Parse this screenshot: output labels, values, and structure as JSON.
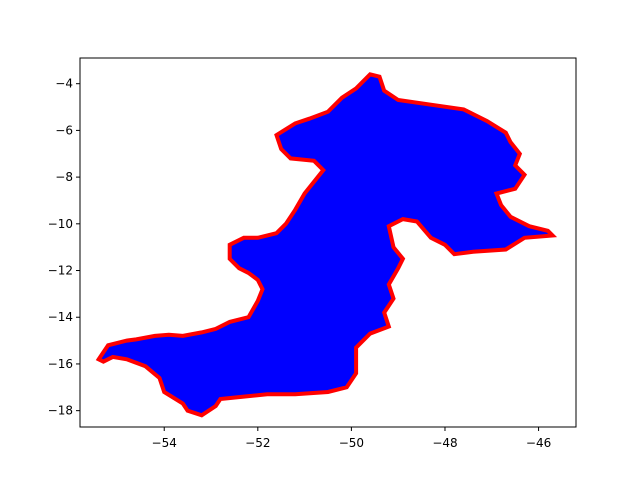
{
  "chart_data": {
    "type": "area",
    "title": "",
    "xlabel": "",
    "ylabel": "",
    "xlim": [
      -55.8,
      -45.2
    ],
    "ylim": [
      -18.7,
      -2.9
    ],
    "grid": false,
    "legend": "none",
    "x_ticks": [
      -54,
      -52,
      -50,
      -48,
      -46
    ],
    "y_ticks": [
      -4,
      -6,
      -8,
      -10,
      -12,
      -14,
      -16,
      -18
    ],
    "x_tick_labels": [
      "−54",
      "−52",
      "−50",
      "−48",
      "−46"
    ],
    "y_tick_labels": [
      "−4",
      "−6",
      "−8",
      "−10",
      "−12",
      "−14",
      "−16",
      "−18"
    ],
    "fill_color": "#0000ff",
    "edge_color": "#ff0000",
    "series": [
      {
        "boundary": [
          [
            -55.4,
            -15.8
          ],
          [
            -55.2,
            -15.2
          ],
          [
            -54.8,
            -15.0
          ],
          [
            -54.6,
            -14.95
          ],
          [
            -54.2,
            -14.8
          ],
          [
            -53.9,
            -14.75
          ],
          [
            -53.6,
            -14.8
          ],
          [
            -53.2,
            -14.65
          ],
          [
            -52.9,
            -14.5
          ],
          [
            -52.6,
            -14.2
          ],
          [
            -52.2,
            -14.0
          ],
          [
            -52.0,
            -13.3
          ],
          [
            -51.9,
            -12.8
          ],
          [
            -52.0,
            -12.4
          ],
          [
            -52.2,
            -12.1
          ],
          [
            -52.4,
            -11.9
          ],
          [
            -52.6,
            -11.5
          ],
          [
            -52.6,
            -10.9
          ],
          [
            -52.3,
            -10.6
          ],
          [
            -52.0,
            -10.6
          ],
          [
            -51.6,
            -10.4
          ],
          [
            -51.4,
            -10.0
          ],
          [
            -51.2,
            -9.4
          ],
          [
            -51.0,
            -8.7
          ],
          [
            -50.8,
            -8.2
          ],
          [
            -50.6,
            -7.7
          ],
          [
            -50.8,
            -7.3
          ],
          [
            -51.3,
            -7.2
          ],
          [
            -51.5,
            -6.8
          ],
          [
            -51.6,
            -6.2
          ],
          [
            -51.2,
            -5.7
          ],
          [
            -50.9,
            -5.5
          ],
          [
            -50.5,
            -5.2
          ],
          [
            -50.2,
            -4.6
          ],
          [
            -49.9,
            -4.2
          ],
          [
            -49.6,
            -3.6
          ],
          [
            -49.4,
            -3.7
          ],
          [
            -49.3,
            -4.3
          ],
          [
            -49.0,
            -4.7
          ],
          [
            -48.3,
            -4.9
          ],
          [
            -47.6,
            -5.1
          ],
          [
            -47.1,
            -5.6
          ],
          [
            -46.7,
            -6.1
          ],
          [
            -46.6,
            -6.5
          ],
          [
            -46.4,
            -7.0
          ],
          [
            -46.5,
            -7.5
          ],
          [
            -46.3,
            -7.9
          ],
          [
            -46.5,
            -8.5
          ],
          [
            -46.9,
            -8.7
          ],
          [
            -46.8,
            -9.2
          ],
          [
            -46.6,
            -9.7
          ],
          [
            -46.2,
            -10.1
          ],
          [
            -45.8,
            -10.3
          ],
          [
            -45.7,
            -10.5
          ],
          [
            -46.3,
            -10.6
          ],
          [
            -46.7,
            -11.1
          ],
          [
            -47.4,
            -11.2
          ],
          [
            -47.8,
            -11.3
          ],
          [
            -48.0,
            -10.9
          ],
          [
            -48.3,
            -10.6
          ],
          [
            -48.6,
            -9.9
          ],
          [
            -48.9,
            -9.8
          ],
          [
            -49.2,
            -10.1
          ],
          [
            -49.1,
            -11.0
          ],
          [
            -48.9,
            -11.5
          ],
          [
            -49.0,
            -11.9
          ],
          [
            -49.2,
            -12.6
          ],
          [
            -49.1,
            -13.2
          ],
          [
            -49.3,
            -13.8
          ],
          [
            -49.2,
            -14.4
          ],
          [
            -49.6,
            -14.7
          ],
          [
            -49.9,
            -15.3
          ],
          [
            -49.9,
            -16.4
          ],
          [
            -50.1,
            -17.0
          ],
          [
            -50.5,
            -17.2
          ],
          [
            -51.2,
            -17.3
          ],
          [
            -51.8,
            -17.3
          ],
          [
            -52.3,
            -17.4
          ],
          [
            -52.8,
            -17.5
          ],
          [
            -52.9,
            -17.8
          ],
          [
            -53.2,
            -18.2
          ],
          [
            -53.5,
            -18.0
          ],
          [
            -53.6,
            -17.7
          ],
          [
            -54.0,
            -17.2
          ],
          [
            -54.1,
            -16.6
          ],
          [
            -54.4,
            -16.1
          ],
          [
            -54.8,
            -15.8
          ],
          [
            -55.1,
            -15.7
          ],
          [
            -55.3,
            -15.9
          ]
        ]
      }
    ]
  }
}
